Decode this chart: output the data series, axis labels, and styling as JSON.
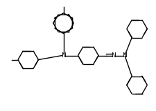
{
  "bg_color": "#ffffff",
  "line_color": "#000000",
  "line_width": 1.0,
  "figsize": [
    2.25,
    1.61
  ],
  "dpi": 100,
  "N_label": "N",
  "font_size": 6.5
}
